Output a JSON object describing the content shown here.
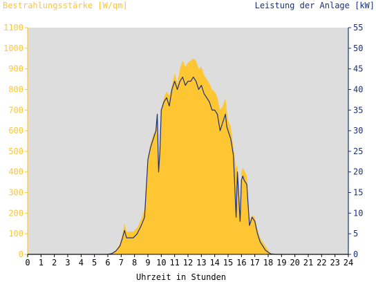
{
  "chart_data": {
    "type": "area",
    "ylabel_left": "Bestrahlungsstärke [W/qm]",
    "ylabel_right": "Leistung der Anlage [kW]",
    "xlabel": "Uhrzeit in Stunden",
    "xlim": [
      0,
      24
    ],
    "ylim_left": [
      0,
      1100
    ],
    "ylim_right": [
      0,
      55
    ],
    "x_ticks": [
      0,
      1,
      2,
      3,
      4,
      5,
      6,
      7,
      8,
      9,
      10,
      11,
      12,
      13,
      14,
      15,
      16,
      17,
      18,
      19,
      20,
      21,
      22,
      23,
      24
    ],
    "y_ticks_left": [
      0,
      100,
      200,
      300,
      400,
      500,
      600,
      700,
      800,
      900,
      1000,
      1100
    ],
    "y_ticks_right": [
      0,
      5,
      10,
      15,
      20,
      25,
      30,
      35,
      40,
      45,
      50,
      55
    ],
    "grid": false,
    "colors": {
      "irradiance": "#ffc634",
      "power": "#1a2f7a",
      "plot_bg": "#dddddd"
    },
    "series": [
      {
        "name": "Bestrahlungsstärke [W/qm]",
        "axis": "left",
        "x": [
          0,
          6.0,
          6.3,
          6.6,
          6.9,
          7.1,
          7.25,
          7.4,
          7.6,
          7.9,
          8.2,
          8.5,
          8.75,
          9.0,
          9.2,
          9.4,
          9.6,
          9.7,
          9.8,
          9.9,
          10.0,
          10.2,
          10.4,
          10.6,
          10.8,
          11.0,
          11.2,
          11.4,
          11.6,
          11.8,
          12.0,
          12.2,
          12.4,
          12.6,
          12.8,
          13.0,
          13.2,
          13.4,
          13.6,
          13.8,
          14.0,
          14.2,
          14.4,
          14.6,
          14.8,
          14.9,
          15.0,
          15.2,
          15.4,
          15.6,
          15.7,
          15.8,
          15.9,
          16.0,
          16.1,
          16.2,
          16.4,
          16.6,
          16.8,
          17.0,
          17.2,
          17.4,
          17.6,
          17.8,
          18.0,
          18.2,
          18.5,
          24
        ],
        "values": [
          0,
          0,
          5,
          20,
          50,
          100,
          150,
          110,
          110,
          110,
          130,
          170,
          220,
          470,
          540,
          580,
          600,
          690,
          400,
          520,
          700,
          760,
          790,
          770,
          820,
          880,
          830,
          900,
          940,
          910,
          930,
          940,
          950,
          940,
          900,
          910,
          870,
          850,
          830,
          800,
          790,
          760,
          700,
          720,
          760,
          700,
          650,
          620,
          520,
          420,
          430,
          330,
          200,
          400,
          420,
          410,
          380,
          170,
          190,
          180,
          120,
          80,
          60,
          40,
          20,
          5,
          0,
          0
        ]
      },
      {
        "name": "Leistung der Anlage [kW]",
        "axis": "right",
        "x": [
          0,
          6.0,
          6.3,
          6.6,
          6.9,
          7.1,
          7.25,
          7.4,
          7.6,
          7.9,
          8.2,
          8.5,
          8.75,
          9.0,
          9.2,
          9.4,
          9.6,
          9.7,
          9.8,
          9.9,
          10.0,
          10.2,
          10.4,
          10.6,
          10.8,
          11.0,
          11.2,
          11.4,
          11.6,
          11.8,
          12.0,
          12.2,
          12.4,
          12.6,
          12.8,
          13.0,
          13.2,
          13.4,
          13.6,
          13.8,
          14.0,
          14.2,
          14.4,
          14.6,
          14.8,
          14.9,
          15.0,
          15.2,
          15.4,
          15.6,
          15.7,
          15.8,
          15.9,
          16.0,
          16.1,
          16.2,
          16.4,
          16.6,
          16.8,
          17.0,
          17.2,
          17.4,
          17.6,
          17.8,
          18.0,
          18.2,
          18.5,
          24
        ],
        "values": [
          0,
          0,
          0.2,
          0.8,
          2,
          4,
          5.8,
          4,
          4,
          4,
          5,
          7,
          9,
          23,
          26,
          28,
          30,
          34,
          20,
          25,
          35,
          37,
          38,
          36,
          40,
          42,
          40,
          42,
          43,
          41,
          42,
          42,
          43,
          42,
          40,
          41,
          39,
          38,
          37,
          35,
          35,
          34,
          30,
          32,
          34,
          31,
          30,
          28,
          24,
          9,
          20,
          14,
          8,
          18,
          19,
          18,
          17,
          7,
          9,
          8,
          5,
          3,
          2,
          1,
          0.5,
          0.1,
          0,
          0
        ]
      }
    ]
  }
}
